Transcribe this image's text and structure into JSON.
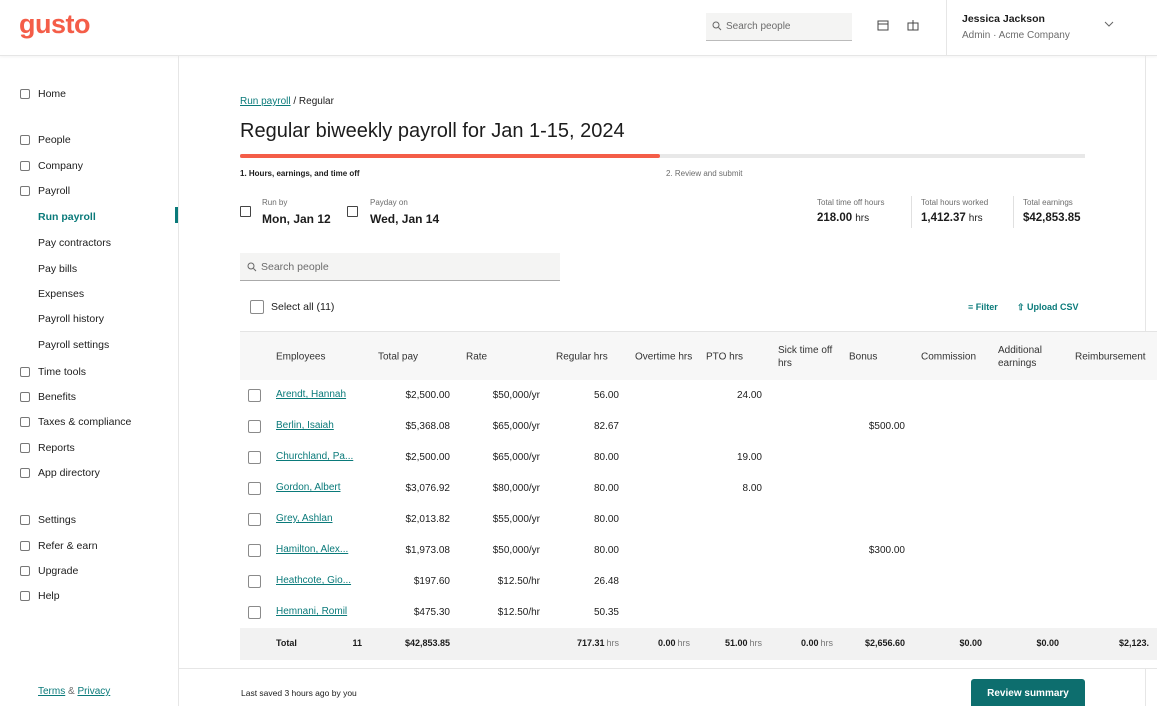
{
  "header": {
    "logo": "gusto",
    "search_placeholder": "Search people",
    "user_name": "Jessica Jackson",
    "user_role": "Admin · Acme Company"
  },
  "sidebar": {
    "items": [
      {
        "label": "Home"
      },
      {
        "label": "People"
      },
      {
        "label": "Company"
      },
      {
        "label": "Payroll",
        "children": [
          "Run payroll",
          "Pay contractors",
          "Pay bills",
          "Expenses",
          "Payroll history",
          "Payroll settings"
        ]
      },
      {
        "label": "Time tools"
      },
      {
        "label": "Benefits"
      },
      {
        "label": "Taxes & compliance"
      },
      {
        "label": "Reports"
      },
      {
        "label": "App directory"
      },
      {
        "label": "Settings"
      },
      {
        "label": "Refer & earn"
      },
      {
        "label": "Upgrade"
      },
      {
        "label": "Help"
      }
    ],
    "footer": {
      "terms": "Terms",
      "and": "&",
      "privacy": "Privacy"
    }
  },
  "breadcrumb": {
    "link": "Run payroll",
    "current": "/ Regular"
  },
  "title": "Regular biweekly payroll for Jan 1-15, 2024",
  "steps": [
    "1. Hours, earnings, and time off",
    "2. Review and submit"
  ],
  "dates": [
    {
      "label": "Run by",
      "value": "Mon, Jan 12"
    },
    {
      "label": "Payday on",
      "value": "Wed, Jan 14"
    }
  ],
  "summary": [
    {
      "label": "Total time off hours",
      "value": "218.00",
      "unit": "hrs"
    },
    {
      "label": "Total hours worked",
      "value": "1,412.37",
      "unit": "hrs"
    },
    {
      "label": "Total earnings",
      "value": "$42,853.85"
    }
  ],
  "search_placeholder": "Search people",
  "select_all": "Select all (11)",
  "filter": "Filter",
  "upload": "Upload CSV",
  "table": {
    "columns": [
      "Employees",
      "Total pay",
      "Rate",
      "Regular hrs",
      "Overtime hrs",
      "PTO hrs",
      "Sick time off hrs",
      "Bonus",
      "Commission",
      "Additional earnings",
      "Reimbursement"
    ],
    "rows": [
      [
        "Arendt, Hannah",
        "$2,500.00",
        "$50,000/yr",
        "56.00",
        null,
        "24.00",
        null,
        null,
        null,
        null,
        null
      ],
      [
        "Berlin, Isaiah",
        "$5,368.08",
        "$65,000/yr",
        "82.67",
        null,
        null,
        null,
        "$500.00",
        null,
        null,
        null
      ],
      [
        "Churchland, Pa...",
        "$2,500.00",
        "$65,000/yr",
        "80.00",
        null,
        "19.00",
        null,
        null,
        null,
        null,
        null
      ],
      [
        "Gordon, Albert",
        "$3,076.92",
        "$80,000/yr",
        "80.00",
        null,
        "8.00",
        null,
        null,
        null,
        null,
        null
      ],
      [
        "Grey, Ashlan",
        "$2,013.82",
        "$55,000/yr",
        "80.00",
        null,
        null,
        null,
        null,
        null,
        null,
        null
      ],
      [
        "Hamilton, Alex...",
        "$1,973.08",
        "$50,000/yr",
        "80.00",
        null,
        null,
        null,
        "$300.00",
        null,
        null,
        null
      ],
      [
        "Heathcote, Gio...",
        "$197.60",
        "$12.50/hr",
        "26.48",
        null,
        null,
        null,
        null,
        null,
        null,
        null
      ],
      [
        "Hemnani, Romil",
        "$475.30",
        "$12.50/hr",
        "50.35",
        null,
        null,
        null,
        null,
        null,
        null,
        null
      ]
    ],
    "total": {
      "label": "Total",
      "count": "11",
      "cells": [
        {
          "text": "$42,853.85"
        },
        null,
        {
          "text": "717.31",
          "unit": "hrs"
        },
        {
          "text": "0.00",
          "unit": "hrs"
        },
        {
          "text": "51.00",
          "unit": "hrs"
        },
        {
          "text": "0.00",
          "unit": "hrs"
        },
        {
          "text": "$2,656.60"
        },
        {
          "text": "$0.00"
        },
        {
          "text": "$0.00"
        },
        {
          "text": "$2,123."
        }
      ]
    }
  },
  "footer": {
    "status": "Last saved 3 hours ago by you",
    "button": "Review summary"
  }
}
